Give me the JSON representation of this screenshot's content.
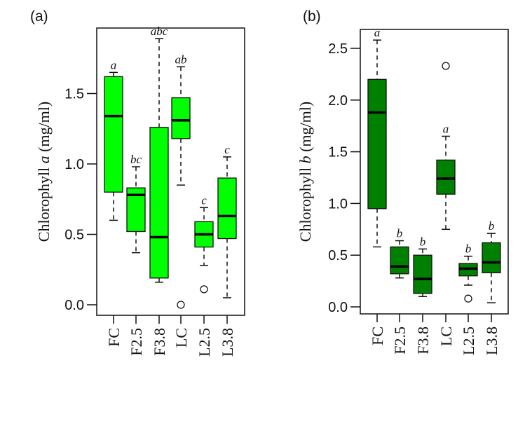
{
  "chart_data": [
    {
      "type": "box",
      "panel_label": "(a)",
      "ylabel_prefix": "Chlorophyll ",
      "ylabel_italic": "a",
      "ylabel_suffix": " (mg/ml)",
      "ylim": [
        0,
        1.9
      ],
      "yticks": [
        0.0,
        0.5,
        1.0,
        1.5
      ],
      "ytick_labels": [
        "0.0",
        "0.5",
        "1.0",
        "1.5"
      ],
      "box_color": "#00ff00",
      "categories": [
        "FC",
        "F2.5",
        "F3.8",
        "LC",
        "L2.5",
        "L3.8"
      ],
      "boxes": [
        {
          "min": 0.6,
          "q1": 0.8,
          "median": 1.34,
          "q3": 1.62,
          "max": 1.65,
          "outliers": [],
          "letter": "a"
        },
        {
          "min": 0.37,
          "q1": 0.52,
          "median": 0.78,
          "q3": 0.83,
          "max": 0.98,
          "outliers": [],
          "letter": "bc"
        },
        {
          "min": 0.16,
          "q1": 0.19,
          "median": 0.48,
          "q3": 1.26,
          "max": 1.89,
          "outliers": [],
          "letter": "abc"
        },
        {
          "min": 0.85,
          "q1": 1.18,
          "median": 1.31,
          "q3": 1.47,
          "max": 1.69,
          "outliers": [
            0.0
          ],
          "letter": "ab"
        },
        {
          "min": 0.28,
          "q1": 0.41,
          "median": 0.5,
          "q3": 0.59,
          "max": 0.69,
          "outliers": [
            0.11
          ],
          "letter": "c"
        },
        {
          "min": 0.05,
          "q1": 0.47,
          "median": 0.63,
          "q3": 0.9,
          "max": 1.05,
          "outliers": [],
          "letter": "c"
        }
      ]
    },
    {
      "type": "box",
      "panel_label": "(b)",
      "ylabel_prefix": "Chlorophyll ",
      "ylabel_italic": "b",
      "ylabel_suffix": " (mg/ml)",
      "ylim": [
        0,
        2.6
      ],
      "yticks": [
        0.0,
        0.5,
        1.0,
        1.5,
        2.0,
        2.5
      ],
      "ytick_labels": [
        "0.0",
        "0.5",
        "1.0",
        "1.5",
        "2.0",
        "2.5"
      ],
      "box_color": "#008000",
      "categories": [
        "FC",
        "F2.5",
        "F3.8",
        "LC",
        "L2.5",
        "L3.8"
      ],
      "boxes": [
        {
          "min": 0.58,
          "q1": 0.95,
          "median": 1.88,
          "q3": 2.2,
          "max": 2.58,
          "outliers": [],
          "letter": "a"
        },
        {
          "min": 0.28,
          "q1": 0.32,
          "median": 0.39,
          "q3": 0.58,
          "max": 0.64,
          "outliers": [],
          "letter": "b"
        },
        {
          "min": 0.1,
          "q1": 0.13,
          "median": 0.27,
          "q3": 0.5,
          "max": 0.56,
          "outliers": [],
          "letter": "b"
        },
        {
          "min": 0.75,
          "q1": 1.09,
          "median": 1.24,
          "q3": 1.42,
          "max": 1.65,
          "outliers": [
            2.33
          ],
          "letter": "a"
        },
        {
          "min": 0.21,
          "q1": 0.3,
          "median": 0.37,
          "q3": 0.42,
          "max": 0.49,
          "outliers": [
            0.08
          ],
          "letter": "b"
        },
        {
          "min": 0.04,
          "q1": 0.33,
          "median": 0.43,
          "q3": 0.62,
          "max": 0.71,
          "outliers": [],
          "letter": "b"
        }
      ]
    }
  ]
}
